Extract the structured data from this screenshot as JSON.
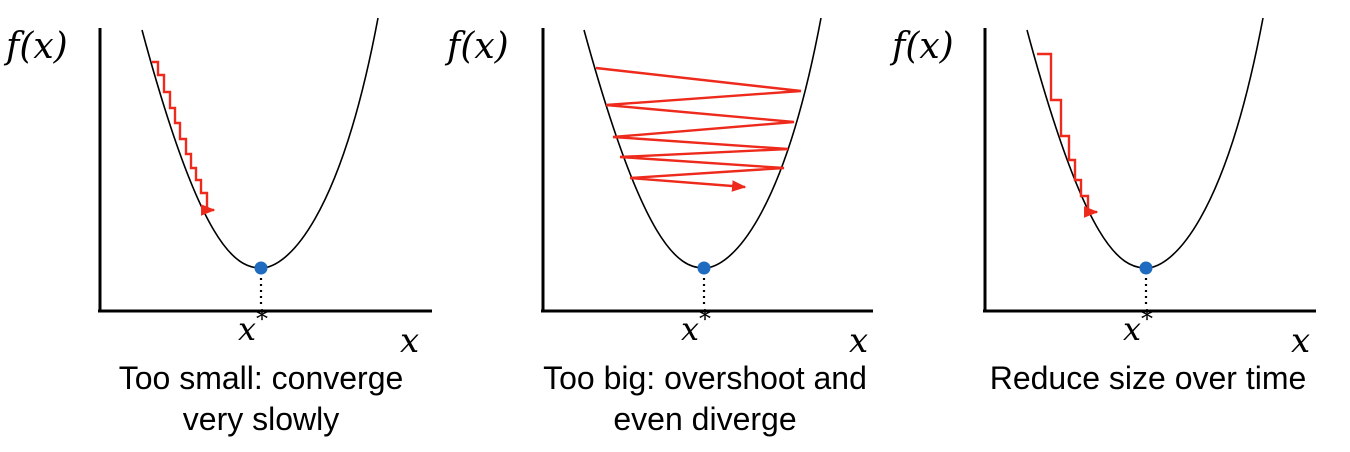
{
  "colors": {
    "axis": "#000000",
    "curve": "#000000",
    "path": "#ee2a1c",
    "minimum": "#1f6bbf"
  },
  "labels": {
    "y_axis": "f(x)",
    "x_axis": "x",
    "x_star": "x*"
  },
  "panels": [
    {
      "caption_line1": "Too small: converge",
      "caption_line2": "very slowly"
    },
    {
      "caption_line1": "Too big: overshoot and",
      "caption_line2": "even diverge"
    },
    {
      "caption_line1": "Reduce size over time",
      "caption_line2": ""
    }
  ]
}
